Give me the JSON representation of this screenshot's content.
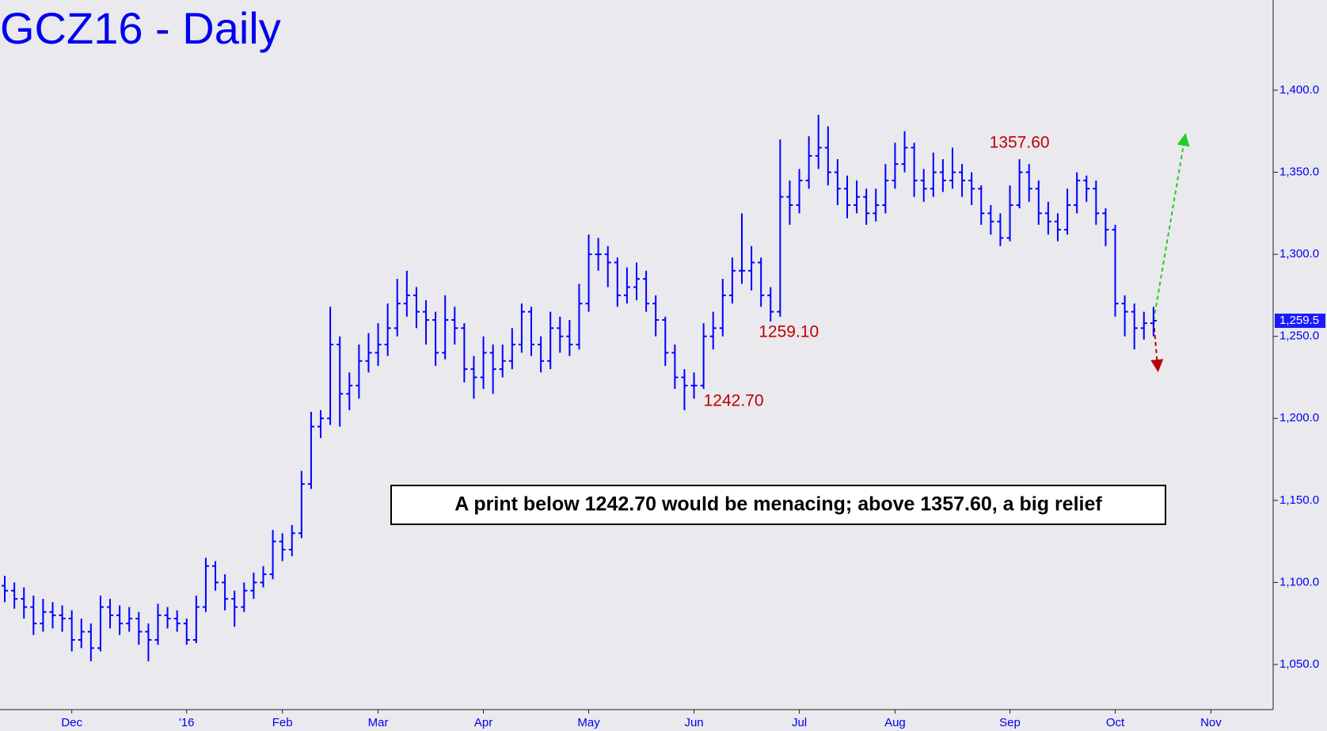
{
  "chart_data": {
    "type": "ohlc",
    "title": "GCZ16 - Daily",
    "color": "#0000ff",
    "ylim": [
      1022.5,
      1455
    ],
    "yticks": [
      {
        "value": 1050,
        "label": "1,050.0"
      },
      {
        "value": 1100,
        "label": "1,100.0"
      },
      {
        "value": 1150,
        "label": "1,150.0"
      },
      {
        "value": 1200,
        "label": "1,200.0"
      },
      {
        "value": 1250,
        "label": "1,250.0"
      },
      {
        "value": 1300,
        "label": "1,300.0"
      },
      {
        "value": 1350,
        "label": "1,350.0"
      },
      {
        "value": 1400,
        "label": "1,400.0"
      }
    ],
    "last_price": {
      "value": 1259.5,
      "label": "1,259.5"
    },
    "annotations": [
      "1357.60",
      "1259.10",
      "1242.70"
    ],
    "callout": "A print below 1242.70 would be menacing; above 1357.60, a big relief",
    "categories": [
      null,
      null,
      null,
      null,
      null,
      null,
      null,
      "Dec",
      null,
      null,
      null,
      null,
      null,
      null,
      null,
      null,
      null,
      null,
      null,
      "'16",
      null,
      null,
      null,
      null,
      null,
      null,
      null,
      null,
      null,
      "Feb",
      null,
      null,
      null,
      null,
      null,
      null,
      null,
      null,
      null,
      "Mar",
      null,
      null,
      null,
      null,
      null,
      null,
      null,
      null,
      null,
      null,
      "Apr",
      null,
      null,
      null,
      null,
      null,
      null,
      null,
      null,
      null,
      null,
      "May",
      null,
      null,
      null,
      null,
      null,
      null,
      null,
      null,
      null,
      null,
      "Jun",
      null,
      null,
      null,
      null,
      null,
      null,
      null,
      null,
      null,
      null,
      "Jul",
      null,
      null,
      null,
      null,
      null,
      null,
      null,
      null,
      null,
      "Aug",
      null,
      null,
      null,
      null,
      null,
      null,
      null,
      null,
      null,
      null,
      null,
      "Sep",
      null,
      null,
      null,
      null,
      null,
      null,
      null,
      null,
      null,
      null,
      "Oct",
      null,
      null,
      null,
      null,
      null,
      null,
      null,
      null,
      null,
      "Nov",
      null,
      null,
      null,
      null,
      null,
      null
    ],
    "open": [
      1098,
      1095,
      1090,
      1085,
      1075,
      1082,
      1080,
      1078,
      1065,
      1070,
      1060,
      1085,
      1080,
      1075,
      1078,
      1070,
      1065,
      1080,
      1078,
      1075,
      1065,
      1085,
      1110,
      1100,
      1090,
      1085,
      1095,
      1100,
      1105,
      1125,
      1120,
      1130,
      1160,
      1195,
      1200,
      1245,
      1215,
      1220,
      1235,
      1240,
      1245,
      1255,
      1270,
      1275,
      1265,
      1260,
      1240,
      1260,
      1255,
      1230,
      1225,
      1240,
      1230,
      1235,
      1245,
      1265,
      1245,
      1235,
      1255,
      1250,
      1245,
      1270,
      1300,
      1300,
      1295,
      1275,
      1280,
      1285,
      1270,
      1260,
      1240,
      1225,
      1220,
      1220,
      1250,
      1255,
      1275,
      1290,
      1290,
      1295,
      1275,
      1265,
      1335,
      1330,
      1345,
      1360,
      1365,
      1350,
      1340,
      1330,
      1335,
      1325,
      1330,
      1345,
      1355,
      1365,
      1345,
      1340,
      1350,
      1345,
      1350,
      1345,
      1340,
      1325,
      1320,
      1310,
      1330,
      1350,
      1340,
      1325,
      1320,
      1315,
      1330,
      1345,
      1340,
      1325,
      1315,
      1270,
      1265,
      1255,
      1258,
      null,
      null,
      null,
      null,
      null,
      null,
      null,
      null,
      null,
      null,
      null,
      null
    ],
    "high": [
      1104,
      1100,
      1097,
      1092,
      1090,
      1088,
      1086,
      1083,
      1078,
      1075,
      1092,
      1090,
      1086,
      1085,
      1082,
      1075,
      1087,
      1085,
      1083,
      1078,
      1092,
      1115,
      1113,
      1105,
      1095,
      1100,
      1106,
      1110,
      1132,
      1130,
      1135,
      1168,
      1204,
      1205,
      1268,
      1250,
      1228,
      1245,
      1252,
      1258,
      1270,
      1285,
      1290,
      1280,
      1272,
      1265,
      1275,
      1268,
      1258,
      1238,
      1250,
      1245,
      1245,
      1255,
      1270,
      1268,
      1250,
      1265,
      1262,
      1260,
      1282,
      1312,
      1310,
      1305,
      1298,
      1292,
      1295,
      1290,
      1275,
      1262,
      1245,
      1230,
      1228,
      1258,
      1265,
      1285,
      1298,
      1325,
      1305,
      1298,
      1280,
      1370,
      1345,
      1352,
      1372,
      1385,
      1378,
      1358,
      1348,
      1345,
      1340,
      1340,
      1355,
      1368,
      1375,
      1368,
      1352,
      1362,
      1358,
      1365,
      1355,
      1350,
      1342,
      1330,
      1325,
      1342,
      1358,
      1355,
      1345,
      1332,
      1325,
      1340,
      1350,
      1348,
      1345,
      1328,
      1318,
      1275,
      1270,
      1265,
      1268,
      null,
      null,
      null,
      null,
      null,
      null,
      null,
      null,
      null,
      null,
      null,
      null
    ],
    "low": [
      1088,
      1084,
      1078,
      1068,
      1070,
      1072,
      1070,
      1058,
      1060,
      1052,
      1058,
      1072,
      1068,
      1070,
      1062,
      1052,
      1062,
      1072,
      1070,
      1062,
      1063,
      1082,
      1095,
      1083,
      1073,
      1082,
      1090,
      1097,
      1102,
      1113,
      1116,
      1127,
      1157,
      1188,
      1196,
      1195,
      1205,
      1212,
      1228,
      1232,
      1238,
      1250,
      1262,
      1255,
      1245,
      1232,
      1236,
      1245,
      1222,
      1212,
      1218,
      1215,
      1225,
      1230,
      1240,
      1238,
      1228,
      1230,
      1240,
      1238,
      1242,
      1265,
      1290,
      1280,
      1268,
      1270,
      1272,
      1265,
      1250,
      1232,
      1218,
      1205,
      1212,
      1218,
      1242,
      1250,
      1270,
      1282,
      1278,
      1268,
      1259,
      1262,
      1318,
      1325,
      1340,
      1352,
      1342,
      1330,
      1322,
      1325,
      1318,
      1320,
      1325,
      1340,
      1350,
      1335,
      1332,
      1335,
      1338,
      1340,
      1335,
      1330,
      1318,
      1312,
      1305,
      1308,
      1328,
      1332,
      1318,
      1312,
      1308,
      1312,
      1325,
      1332,
      1318,
      1305,
      1262,
      1250,
      1242,
      1248,
      1250,
      null,
      null,
      null,
      null,
      null,
      null,
      null,
      null,
      null,
      null,
      null,
      null
    ],
    "close": [
      1095,
      1090,
      1085,
      1075,
      1082,
      1080,
      1078,
      1065,
      1070,
      1060,
      1085,
      1080,
      1075,
      1078,
      1070,
      1065,
      1080,
      1078,
      1075,
      1065,
      1085,
      1110,
      1100,
      1090,
      1085,
      1095,
      1100,
      1105,
      1125,
      1120,
      1130,
      1160,
      1195,
      1200,
      1245,
      1215,
      1220,
      1235,
      1240,
      1245,
      1255,
      1270,
      1275,
      1265,
      1260,
      1240,
      1260,
      1255,
      1230,
      1225,
      1240,
      1230,
      1235,
      1245,
      1265,
      1245,
      1235,
      1255,
      1250,
      1245,
      1270,
      1300,
      1300,
      1295,
      1275,
      1280,
      1285,
      1270,
      1260,
      1240,
      1225,
      1220,
      1220,
      1250,
      1255,
      1275,
      1290,
      1290,
      1295,
      1275,
      1265,
      1335,
      1330,
      1345,
      1360,
      1365,
      1350,
      1340,
      1330,
      1335,
      1325,
      1330,
      1345,
      1355,
      1365,
      1345,
      1340,
      1350,
      1345,
      1350,
      1345,
      1340,
      1325,
      1320,
      1310,
      1330,
      1350,
      1340,
      1325,
      1320,
      1315,
      1330,
      1345,
      1340,
      1325,
      1315,
      1270,
      1265,
      1255,
      1258,
      1259.5,
      null,
      null,
      null,
      null,
      null,
      null,
      null,
      null,
      null,
      null,
      null,
      null
    ]
  }
}
